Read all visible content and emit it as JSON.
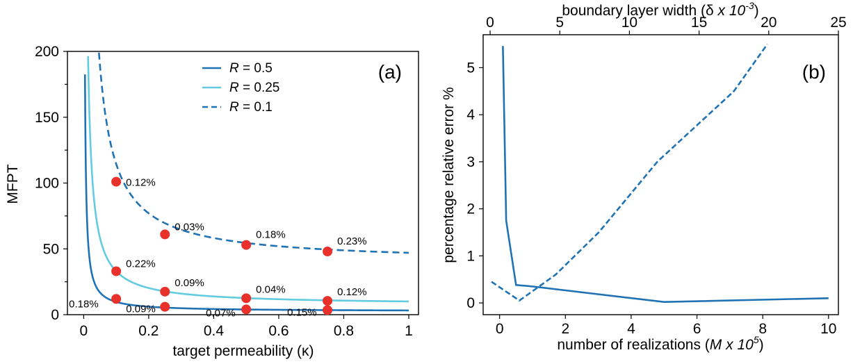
{
  "chart_data": [
    {
      "panel": "(a)",
      "type": "line",
      "xlabel": "target permeability (κ)",
      "ylabel": "MFPT",
      "xlim": [
        -0.05,
        1.03
      ],
      "ylim": [
        0,
        200
      ],
      "xticks": [
        0,
        0.2,
        0.4,
        0.6,
        0.8,
        1
      ],
      "xtick_labels": [
        "0",
        "0.2",
        "0.4",
        "0.6",
        "0.8",
        "1"
      ],
      "yticks": [
        0,
        50,
        100,
        150,
        200
      ],
      "ytick_labels": [
        "0",
        "50",
        "100",
        "150",
        "200"
      ],
      "yminor_ticks": [
        25,
        75,
        125,
        175
      ],
      "legend": {
        "placement": "top-center",
        "entries": [
          {
            "prefix": "R",
            "value": " = 0.5",
            "color": "#1f72b4",
            "style": "solid"
          },
          {
            "prefix": "R",
            "value": " = 0.25",
            "color": "#63cbe0",
            "style": "solid"
          },
          {
            "prefix": "R",
            "value": " = 0.1",
            "color": "#1f72b4",
            "style": "dashed"
          }
        ]
      },
      "series": [
        {
          "name": "R = 0.5",
          "color": "#1f72b4",
          "dash": false,
          "a": 0.72,
          "b": 2.5,
          "xmin": 0.004
        },
        {
          "name": "R = 0.25",
          "color": "#63cbe0",
          "dash": false,
          "a": 2.55,
          "b": 7.5,
          "xmin": 0.0135
        },
        {
          "name": "R = 0.1",
          "color": "#1f72b4",
          "dash": true,
          "a": 7.5,
          "b": 39.5,
          "xmin": 0.047
        }
      ],
      "markers": [
        {
          "x": 0.1,
          "y": 101,
          "label": "0.12%"
        },
        {
          "x": 0.25,
          "y": 61,
          "label": "0.03%"
        },
        {
          "x": 0.5,
          "y": 53,
          "label": "0.18%"
        },
        {
          "x": 0.75,
          "y": 48,
          "label": "0.23%"
        },
        {
          "x": 0.1,
          "y": 33,
          "label": "0.22%"
        },
        {
          "x": 0.25,
          "y": 17.5,
          "label": "0.09%"
        },
        {
          "x": 0.5,
          "y": 12.5,
          "label": "0.04%"
        },
        {
          "x": 0.75,
          "y": 10.5,
          "label": "0.12%"
        },
        {
          "x": 0.1,
          "y": 12,
          "label": "0.18%"
        },
        {
          "x": 0.25,
          "y": 6,
          "label": "0.09%"
        },
        {
          "x": 0.5,
          "y": 4,
          "label": "0.07%"
        },
        {
          "x": 0.75,
          "y": 3.5,
          "label": "0.15%"
        }
      ],
      "marker_color": "#e8312a"
    },
    {
      "panel": "(b)",
      "type": "line",
      "xlabel_prefix": "number of realizations (",
      "xlabel_var": "M x 10",
      "xlabel_sup": "5",
      "xlabel_suffix": ")",
      "x2label_prefix": "boundary layer width (δ ",
      "x2label_var": "x 10",
      "x2label_sup": "-3",
      "x2label_suffix": ")",
      "ylabel": "percentage relative error %",
      "xlim": [
        -0.5,
        10.3
      ],
      "x2lim": [
        -0.5,
        25
      ],
      "ylim": [
        -0.25,
        5.7
      ],
      "xticks": [
        0,
        2,
        4,
        6,
        8,
        10
      ],
      "xtick_labels": [
        "0",
        "2",
        "4",
        "6",
        "8",
        "10"
      ],
      "x2ticks": [
        0,
        5,
        10,
        15,
        20,
        25
      ],
      "x2tick_labels": [
        "0",
        "5",
        "10",
        "15",
        "20",
        "25"
      ],
      "yticks": [
        0,
        1,
        2,
        3,
        4,
        5
      ],
      "ytick_labels": [
        "0",
        "1",
        "2",
        "3",
        "4",
        "5"
      ],
      "series": [
        {
          "name": "number of realizations",
          "axis": "bottom",
          "color": "#1f72b4",
          "dash": false,
          "x": [
            0.1,
            0.2,
            0.5,
            1,
            5,
            10
          ],
          "y": [
            5.46,
            1.75,
            0.38,
            0.35,
            0.02,
            0.1
          ]
        },
        {
          "name": "boundary layer width",
          "axis": "top",
          "color": "#1f72b4",
          "dash": true,
          "x": [
            0.1,
            2.1,
            4.7,
            7.8,
            12,
            17.5,
            19.9
          ],
          "y": [
            0.45,
            0.05,
            0.6,
            1.5,
            3.0,
            4.5,
            5.5
          ]
        }
      ]
    }
  ]
}
